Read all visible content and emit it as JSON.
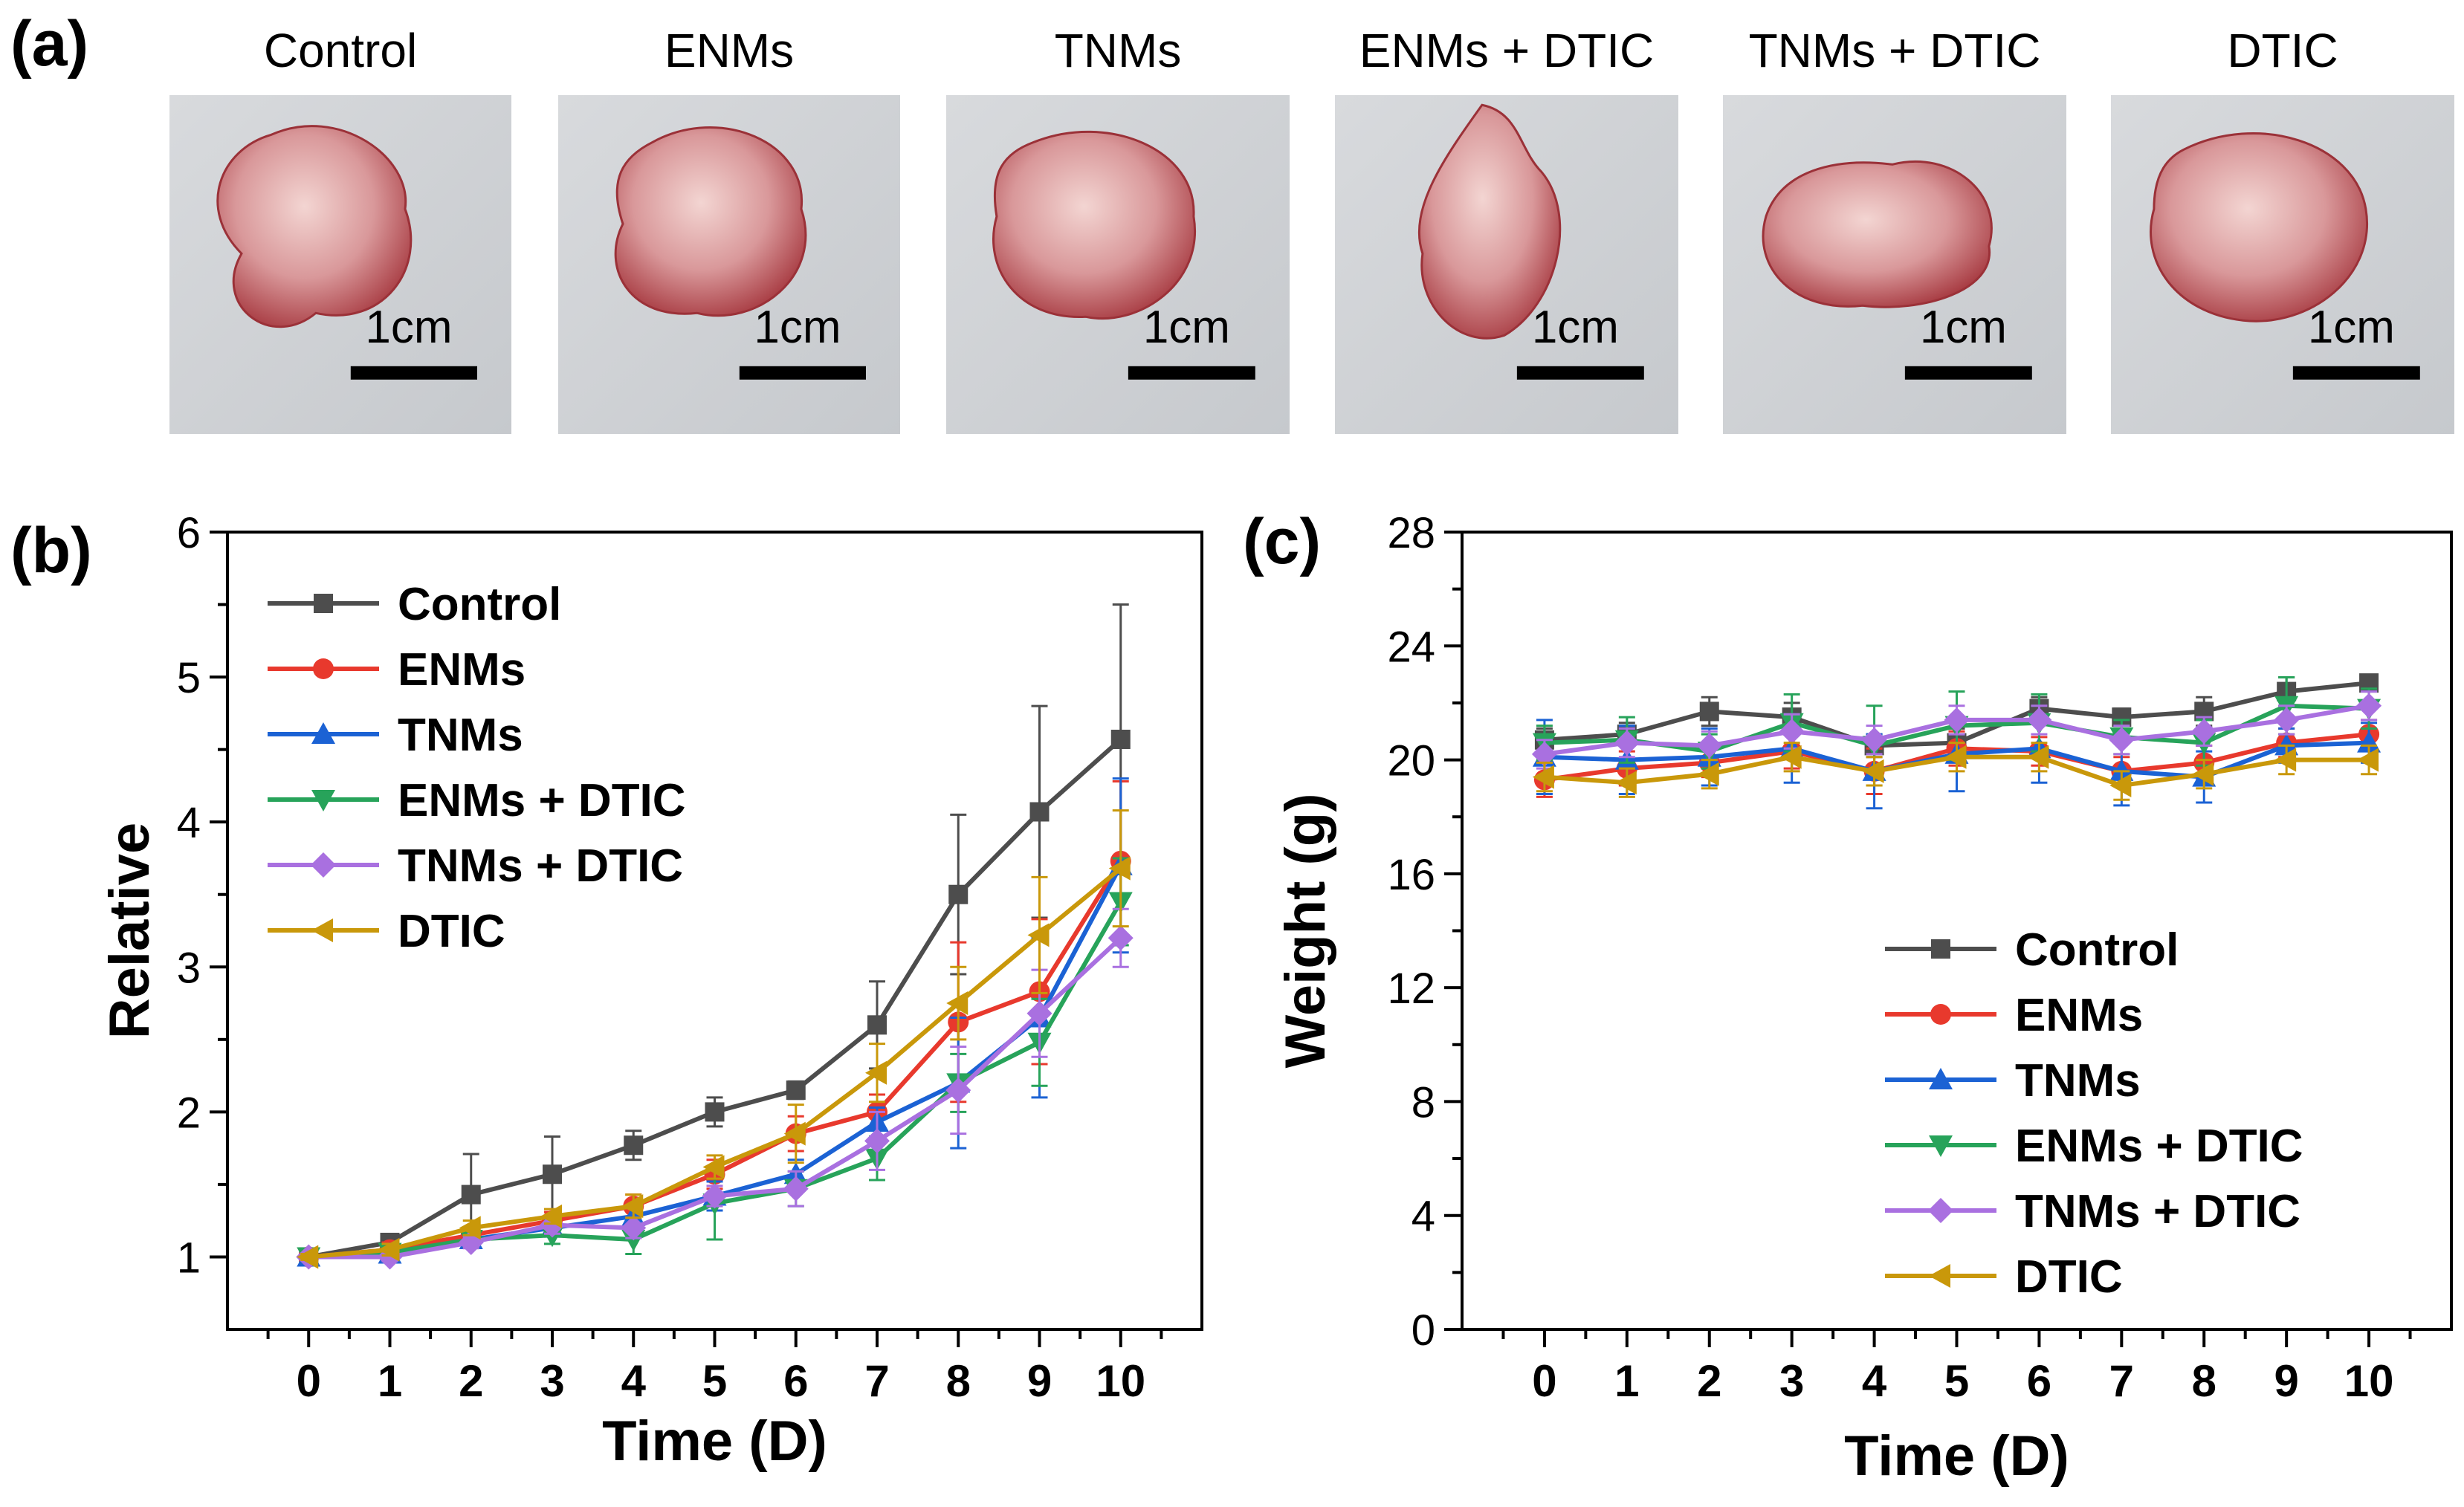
{
  "panel_a": {
    "letter": "(a)",
    "images": [
      {
        "label": "Control",
        "scale": "1cm",
        "tumor": "Control tumor photo"
      },
      {
        "label": "ENMs",
        "scale": "1cm",
        "tumor": "ENMs tumor photo"
      },
      {
        "label": "TNMs",
        "scale": "1cm",
        "tumor": "TNMs tumor photo"
      },
      {
        "label": "ENMs + DTIC",
        "scale": "1cm",
        "tumor": "ENMs + DTIC tumor photo"
      },
      {
        "label": "TNMs + DTIC",
        "scale": "1cm",
        "tumor": "TNMs + DTIC tumor photo"
      },
      {
        "label": "DTIC",
        "scale": "1cm",
        "tumor": "DTIC tumor photo"
      }
    ]
  },
  "panel_b": {
    "letter": "(b)"
  },
  "panel_c": {
    "letter": "(c)"
  },
  "chart_data": [
    {
      "id": "b",
      "type": "line",
      "title": "",
      "xlabel": "Time (D)",
      "ylabel": "Relative",
      "x": [
        0,
        1,
        2,
        3,
        4,
        5,
        6,
        7,
        8,
        9,
        10
      ],
      "xlim": [
        -1,
        11
      ],
      "ylim": [
        0.5,
        6
      ],
      "yticks": [
        1,
        2,
        3,
        4,
        5,
        6
      ],
      "xticks": [
        0,
        1,
        2,
        3,
        4,
        5,
        6,
        7,
        8,
        9,
        10
      ],
      "legend_position": "top-left",
      "series": [
        {
          "name": "Control",
          "color": "#4d4d4d",
          "marker": "square",
          "values": [
            1.0,
            1.1,
            1.43,
            1.57,
            1.77,
            2.0,
            2.15,
            2.6,
            3.5,
            4.07,
            4.57
          ],
          "errors": [
            0.02,
            0.05,
            0.28,
            0.26,
            0.1,
            0.1,
            0.06,
            0.3,
            0.55,
            0.73,
            0.93
          ]
        },
        {
          "name": "ENMs",
          "color": "#e8392d",
          "marker": "circle",
          "values": [
            1.0,
            1.05,
            1.15,
            1.25,
            1.35,
            1.57,
            1.85,
            2.0,
            2.62,
            2.83,
            3.73
          ],
          "errors": [
            0.02,
            0.05,
            0.05,
            0.06,
            0.08,
            0.1,
            0.12,
            0.12,
            0.55,
            0.5,
            0.55
          ]
        },
        {
          "name": "TNMs",
          "color": "#1b62d4",
          "marker": "triangle-up",
          "values": [
            1.0,
            1.02,
            1.12,
            1.2,
            1.28,
            1.42,
            1.57,
            1.93,
            2.2,
            2.65,
            3.7
          ],
          "errors": [
            0.02,
            0.04,
            0.05,
            0.06,
            0.07,
            0.1,
            0.1,
            0.1,
            0.45,
            0.55,
            0.6
          ]
        },
        {
          "name": "ENMs + DTIC",
          "color": "#27a35a",
          "marker": "triangle-down",
          "values": [
            1.0,
            1.03,
            1.12,
            1.15,
            1.12,
            1.37,
            1.47,
            1.68,
            2.2,
            2.48,
            3.45
          ],
          "errors": [
            0.02,
            0.04,
            0.05,
            0.06,
            0.1,
            0.25,
            0.12,
            0.15,
            0.2,
            0.3,
            0.3
          ]
        },
        {
          "name": "TNMs + DTIC",
          "color": "#a970e0",
          "marker": "diamond",
          "values": [
            1.0,
            1.0,
            1.1,
            1.22,
            1.2,
            1.42,
            1.47,
            1.8,
            2.15,
            2.68,
            3.2
          ],
          "errors": [
            0.02,
            0.03,
            0.04,
            0.06,
            0.07,
            0.07,
            0.12,
            0.2,
            0.3,
            0.3,
            0.2
          ]
        },
        {
          "name": "DTIC",
          "color": "#c9980a",
          "marker": "triangle-left",
          "values": [
            1.0,
            1.05,
            1.2,
            1.28,
            1.35,
            1.62,
            1.85,
            2.27,
            2.75,
            3.22,
            3.68
          ],
          "errors": [
            0.02,
            0.04,
            0.05,
            0.05,
            0.08,
            0.08,
            0.2,
            0.2,
            0.25,
            0.4,
            0.4
          ]
        }
      ]
    },
    {
      "id": "c",
      "type": "line",
      "title": "",
      "xlabel": "Time (D)",
      "ylabel": "Weight (g)",
      "x": [
        0,
        1,
        2,
        3,
        4,
        5,
        6,
        7,
        8,
        9,
        10
      ],
      "xlim": [
        -1,
        11
      ],
      "ylim": [
        0,
        28
      ],
      "yticks": [
        0,
        4,
        8,
        12,
        16,
        20,
        24,
        28
      ],
      "xticks": [
        0,
        1,
        2,
        3,
        4,
        5,
        6,
        7,
        8,
        9,
        10
      ],
      "legend_position": "bottom-right",
      "series": [
        {
          "name": "Control",
          "color": "#4d4d4d",
          "marker": "square",
          "values": [
            20.7,
            20.9,
            21.7,
            21.5,
            20.5,
            20.6,
            21.8,
            21.5,
            21.7,
            22.4,
            22.7
          ],
          "errors": [
            0.4,
            0.4,
            0.5,
            0.5,
            0.4,
            0.5,
            0.4,
            0.3,
            0.5,
            0.5,
            0.2
          ]
        },
        {
          "name": "ENMs",
          "color": "#e8392d",
          "marker": "circle",
          "values": [
            19.3,
            19.7,
            19.9,
            20.3,
            19.6,
            20.4,
            20.3,
            19.6,
            19.9,
            20.6,
            20.9
          ],
          "errors": [
            0.6,
            0.6,
            0.5,
            0.6,
            0.8,
            0.6,
            0.5,
            0.5,
            0.6,
            0.5,
            0.5
          ]
        },
        {
          "name": "TNMs",
          "color": "#1b62d4",
          "marker": "triangle-up",
          "values": [
            20.1,
            20.0,
            20.1,
            20.4,
            19.6,
            20.2,
            20.4,
            19.6,
            19.4,
            20.5,
            20.6
          ],
          "errors": [
            1.3,
            1.2,
            1.0,
            1.2,
            1.3,
            1.3,
            1.2,
            1.2,
            0.9,
            0.6,
            0.7
          ]
        },
        {
          "name": "ENMs + DTIC",
          "color": "#27a35a",
          "marker": "triangle-down",
          "values": [
            20.6,
            20.7,
            20.3,
            21.3,
            20.5,
            21.2,
            21.3,
            20.8,
            20.6,
            21.9,
            21.8
          ],
          "errors": [
            0.6,
            0.8,
            0.6,
            1.0,
            1.4,
            1.2,
            1.0,
            0.6,
            0.8,
            1.0,
            0.7
          ]
        },
        {
          "name": "TNMs + DTIC",
          "color": "#a970e0",
          "marker": "diamond",
          "values": [
            20.2,
            20.6,
            20.5,
            21.0,
            20.7,
            21.4,
            21.4,
            20.7,
            21.0,
            21.4,
            21.9
          ],
          "errors": [
            0.5,
            0.5,
            0.5,
            0.6,
            0.5,
            0.5,
            0.5,
            0.5,
            0.5,
            0.5,
            0.5
          ]
        },
        {
          "name": "DTIC",
          "color": "#c9980a",
          "marker": "triangle-left",
          "values": [
            19.4,
            19.2,
            19.5,
            20.1,
            19.6,
            20.1,
            20.1,
            19.1,
            19.5,
            20.0,
            20.0
          ],
          "errors": [
            0.5,
            0.5,
            0.5,
            0.5,
            0.5,
            0.5,
            0.5,
            0.5,
            0.5,
            0.5,
            0.5
          ]
        }
      ]
    }
  ]
}
